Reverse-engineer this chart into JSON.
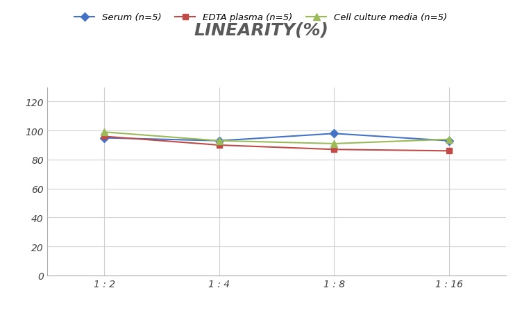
{
  "title": "LINEARITY(%)",
  "x_labels": [
    "1 : 2",
    "1 : 4",
    "1 : 8",
    "1 : 16"
  ],
  "x_positions": [
    0,
    1,
    2,
    3
  ],
  "series": [
    {
      "label": "Serum (n=5)",
      "values": [
        95,
        93,
        98,
        93
      ],
      "color": "#4472C4",
      "marker": "D",
      "markersize": 6,
      "linewidth": 1.5
    },
    {
      "label": "EDTA plasma (n=5)",
      "values": [
        96,
        90,
        87,
        86
      ],
      "color": "#BE4B48",
      "marker": "s",
      "markersize": 6,
      "linewidth": 1.5
    },
    {
      "label": "Cell culture media (n=5)",
      "values": [
        99,
        93,
        91,
        94
      ],
      "color": "#9BBB59",
      "marker": "^",
      "markersize": 7,
      "linewidth": 1.5
    }
  ],
  "ylim": [
    0,
    130
  ],
  "yticks": [
    0,
    20,
    40,
    60,
    80,
    100,
    120
  ],
  "background_color": "#ffffff",
  "grid_color": "#d0d0d0",
  "title_fontsize": 18,
  "title_color": "#595959",
  "legend_fontsize": 9.5,
  "tick_fontsize": 10
}
